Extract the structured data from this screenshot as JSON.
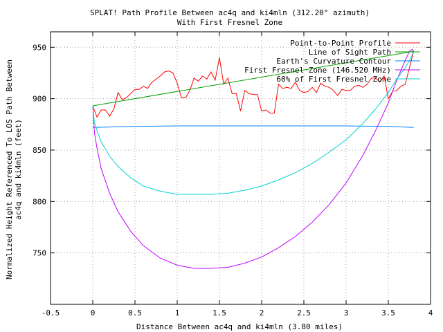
{
  "chart_data": {
    "type": "line",
    "title_lines": [
      "SPLAT! Path Profile Between ac4q and ki4mln (312.20° azimuth)",
      "With First Fresnel Zone"
    ],
    "xlabel": "Distance Between ac4q and ki4mln (3.80 miles)",
    "ylabel_lines": [
      "Normalized Height Referenced To LOS Path Between",
      "ac4q and ki4mln (feet)"
    ],
    "xlim": [
      -0.5,
      4
    ],
    "ylim": [
      700,
      965
    ],
    "x_ticks": [
      -0.5,
      0,
      0.5,
      1,
      1.5,
      2,
      2.5,
      3,
      3.5,
      4
    ],
    "x_tick_labels": [
      "-0.5",
      "0",
      "0.5",
      "1",
      "1.5",
      "2",
      "2.5",
      "3",
      "3.5",
      "4"
    ],
    "y_ticks": [
      750,
      800,
      850,
      900,
      950
    ],
    "y_tick_labels": [
      "750",
      "800",
      "850",
      "900",
      "950"
    ],
    "grid": true,
    "legend_position": "top-right",
    "series": [
      {
        "name": "Point-to-Point Profile",
        "color": "#ff0000",
        "x": [
          0,
          0.05,
          0.1,
          0.15,
          0.2,
          0.25,
          0.3,
          0.35,
          0.4,
          0.45,
          0.5,
          0.55,
          0.6,
          0.65,
          0.7,
          0.75,
          0.8,
          0.85,
          0.9,
          0.95,
          1.0,
          1.05,
          1.1,
          1.15,
          1.2,
          1.25,
          1.3,
          1.35,
          1.4,
          1.45,
          1.5,
          1.55,
          1.6,
          1.65,
          1.7,
          1.75,
          1.8,
          1.85,
          1.9,
          1.95,
          2.0,
          2.05,
          2.1,
          2.15,
          2.2,
          2.25,
          2.3,
          2.35,
          2.4,
          2.45,
          2.5,
          2.55,
          2.6,
          2.65,
          2.7,
          2.75,
          2.8,
          2.85,
          2.9,
          2.95,
          3.0,
          3.05,
          3.1,
          3.15,
          3.2,
          3.25,
          3.3,
          3.35,
          3.4,
          3.45,
          3.5,
          3.55,
          3.6,
          3.65,
          3.7,
          3.75,
          3.8
        ],
        "y": [
          893,
          882,
          889,
          889,
          883,
          890,
          906,
          899,
          901,
          905,
          909,
          909,
          912,
          910,
          916,
          919,
          922,
          926,
          927,
          925,
          915,
          901,
          901,
          908,
          920,
          917,
          922,
          919,
          926,
          918,
          940,
          914,
          920,
          905,
          905,
          888,
          908,
          905,
          904,
          904,
          888,
          889,
          886,
          886,
          914,
          910,
          911,
          910,
          916,
          908,
          906,
          907,
          911,
          906,
          915,
          912,
          911,
          908,
          903,
          909,
          908,
          908,
          912,
          913,
          911,
          914,
          920,
          920,
          916,
          922,
          900,
          907,
          908,
          912,
          914,
          930,
          946
        ]
      },
      {
        "name": "Line of Sight Path",
        "color": "#00a000",
        "x": [
          0,
          3.8
        ],
        "y": [
          893,
          946
        ]
      },
      {
        "name": "Earth's Curvature Contour",
        "color": "#0080ff",
        "x": [
          0,
          0.5,
          1.0,
          1.5,
          2.0,
          2.5,
          3.0,
          3.5,
          3.8
        ],
        "y": [
          872,
          873,
          873.5,
          873.5,
          873.5,
          873.5,
          873.5,
          873,
          872
        ]
      },
      {
        "name": "First Fresnel Zone (146.520 MHz)",
        "color": "#c000ff",
        "x": [
          0,
          0.02,
          0.05,
          0.1,
          0.2,
          0.3,
          0.45,
          0.6,
          0.8,
          1.0,
          1.2,
          1.4,
          1.6,
          1.8,
          2.0,
          2.2,
          2.4,
          2.6,
          2.8,
          3.0,
          3.2,
          3.35,
          3.5,
          3.6,
          3.7,
          3.75,
          3.78,
          3.8
        ],
        "y": [
          893,
          867,
          852,
          832,
          808,
          790,
          771,
          757,
          745,
          738,
          735,
          735,
          736,
          740,
          746,
          755,
          766,
          780,
          797,
          818,
          845,
          869,
          896,
          918,
          937,
          946,
          948,
          946
        ]
      },
      {
        "name": "60% of First Fresnel Zone",
        "color": "#00d0d0",
        "x": [
          0,
          0.02,
          0.05,
          0.1,
          0.2,
          0.3,
          0.45,
          0.6,
          0.8,
          1.0,
          1.2,
          1.4,
          1.6,
          1.8,
          2.0,
          2.2,
          2.4,
          2.6,
          2.8,
          3.0,
          3.2,
          3.35,
          3.5,
          3.6,
          3.7,
          3.75,
          3.78,
          3.8
        ],
        "y": [
          893,
          877,
          869,
          858,
          844,
          834,
          823,
          815,
          810,
          807,
          807,
          807,
          808,
          811,
          815,
          821,
          828,
          837,
          848,
          860,
          876,
          890,
          906,
          919,
          930,
          937,
          942,
          946
        ]
      }
    ]
  }
}
